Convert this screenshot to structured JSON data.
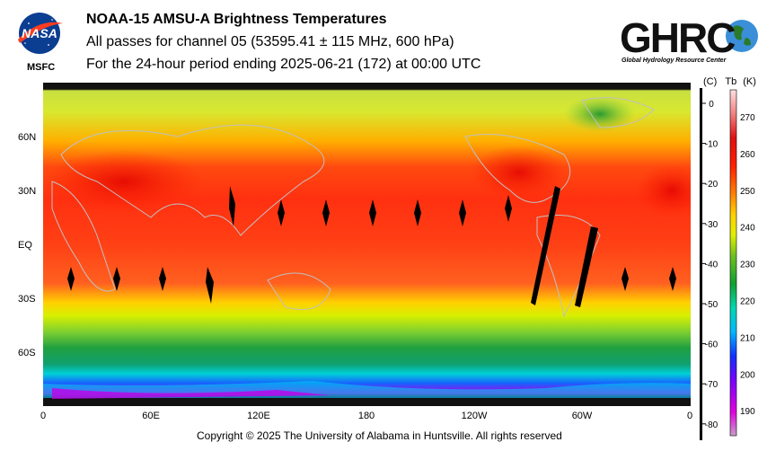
{
  "header": {
    "agency_logo": "NASA",
    "agency_sub": "MSFC",
    "title": "NOAA-15 AMSU-A Brightness Temperatures",
    "line2": "All passes for channel 05 (53595.41 ± 115 MHz, 600 hPa)",
    "line3": "For the 24-hour period ending 2025-06-21 (172) at 00:00 UTC",
    "ghrc_logo": "GHRC",
    "ghrc_tagline": "Global Hydrology Resource Center"
  },
  "map": {
    "x_ticks": [
      "0",
      "60E",
      "120E",
      "180",
      "120W",
      "60W",
      "0"
    ],
    "y_ticks": [
      "60N",
      "30N",
      "EQ",
      "30S",
      "60S"
    ]
  },
  "colorbar": {
    "unit_c": "(C)",
    "unit_tb": "Tb",
    "unit_k": "(K)",
    "celsius_labels": [
      "0",
      "-10",
      "-20",
      "-30",
      "-40",
      "-50",
      "-60",
      "-70",
      "-80"
    ],
    "kelvin_labels": [
      "270",
      "260",
      "250",
      "240",
      "230",
      "220",
      "210",
      "200",
      "190"
    ],
    "colors": [
      "#c7a0c7",
      "#e000e0",
      "#7a00ff",
      "#1030ff",
      "#00c8ff",
      "#00d8a0",
      "#10a030",
      "#b0e020",
      "#ffff00",
      "#ff9000",
      "#ff2000",
      "#e00000",
      "#f08080",
      "#ffe0e0"
    ]
  },
  "footer": {
    "copyright": "Copyright © 2025 The University of Alabama in Huntsville.  All rights reserved"
  }
}
